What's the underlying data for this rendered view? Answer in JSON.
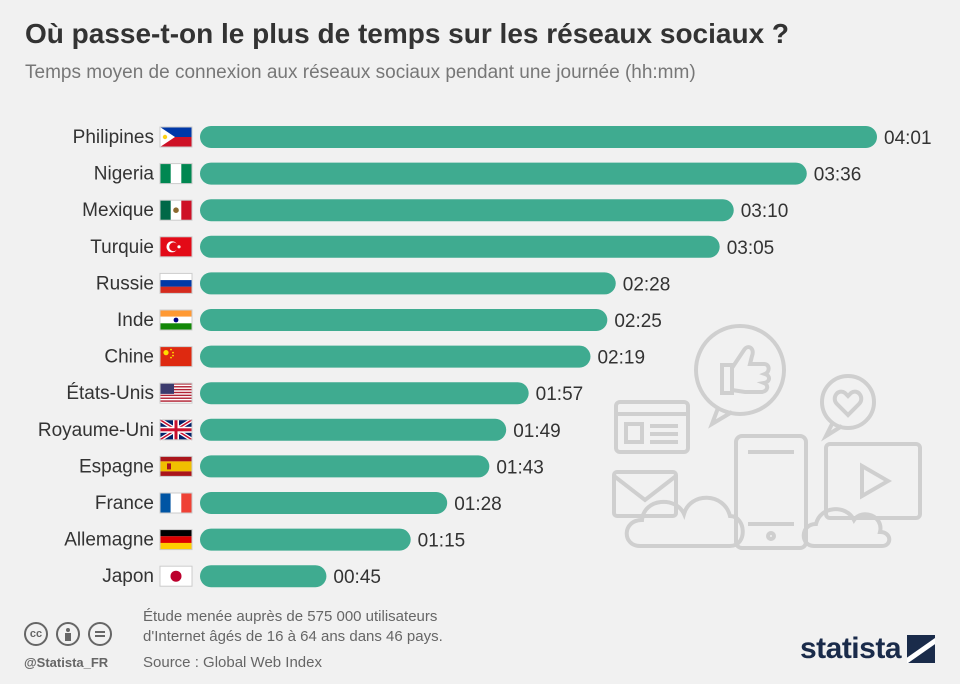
{
  "header": {
    "title": "Où passe-t-on le plus de temps sur les réseaux sociaux ?",
    "subtitle": "Temps moyen de connexion aux réseaux sociaux pendant une journée (hh:mm)"
  },
  "footer": {
    "note_line1": "Étude menée auprès de 575 000 utilisateurs",
    "note_line2": "d'Internet âgés de 16 à 64 ans dans 46 pays.",
    "source": "Source : Global Web Index",
    "handle": "@Statista_FR",
    "brand": "statista",
    "cc_icons": [
      "creative-commons-icon",
      "attribution-icon",
      "no-derivatives-icon"
    ]
  },
  "colors": {
    "bar": "#3fab90",
    "decor": "#cfcfcf"
  },
  "chart_data": {
    "type": "bar",
    "orientation": "horizontal",
    "title": "Où passe-t-on le plus de temps sur les réseaux sociaux ?",
    "subtitle": "Temps moyen de connexion aux réseaux sociaux pendant une journée (hh:mm)",
    "categories": [
      "Philipines",
      "Nigeria",
      "Mexique",
      "Turquie",
      "Russie",
      "Inde",
      "Chine",
      "États-Unis",
      "Royaume-Uni",
      "Espagne",
      "France",
      "Allemagne",
      "Japon"
    ],
    "flags": [
      "philippines-flag-icon",
      "nigeria-flag-icon",
      "mexico-flag-icon",
      "turkey-flag-icon",
      "russia-flag-icon",
      "india-flag-icon",
      "china-flag-icon",
      "usa-flag-icon",
      "uk-flag-icon",
      "spain-flag-icon",
      "france-flag-icon",
      "germany-flag-icon",
      "japan-flag-icon"
    ],
    "labels": [
      "04:01",
      "03:36",
      "03:10",
      "03:05",
      "02:28",
      "02:25",
      "02:19",
      "01:57",
      "01:49",
      "01:43",
      "01:28",
      "01:15",
      "00:45"
    ],
    "values": [
      241,
      216,
      190,
      185,
      148,
      145,
      139,
      117,
      109,
      103,
      88,
      75,
      45
    ],
    "unit": "minutes",
    "xlim": [
      0,
      241
    ],
    "grid": false,
    "legend": "none"
  }
}
